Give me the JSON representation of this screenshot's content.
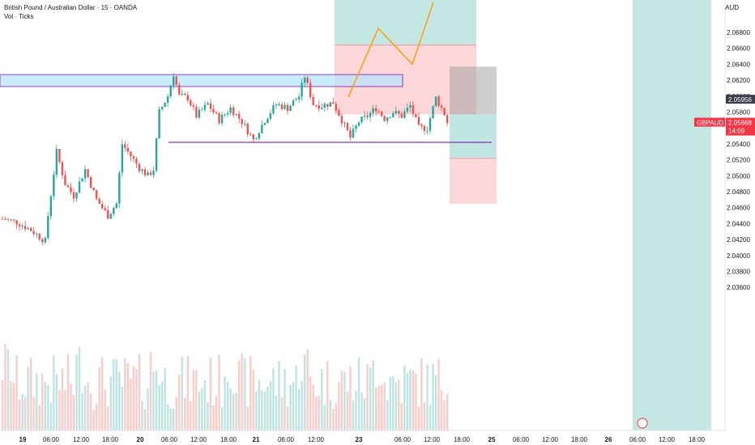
{
  "header": {
    "title": "British Pound / Australian Dollar · 15 · OANDA",
    "indicator": "Vol · Ticks",
    "currency": "AUD"
  },
  "price_tags": {
    "symbol": "GBPAUD",
    "last_price": "2.05668",
    "countdown": "14:09",
    "marker_price": "2.05956"
  },
  "colors": {
    "up": "#26a69a",
    "down": "#ef5350",
    "zone_stroke": "#7b1fa2",
    "zone_fill": "#b3e5fc",
    "path": "#f7a21b",
    "profit_fill": "#b2dfdb",
    "loss_fill": "#f9c9cc"
  },
  "chart_data": {
    "type": "candlestick",
    "symbol": "GBPAUD",
    "interval": "15",
    "ylim": [
      2.0352,
      2.0718
    ],
    "y_ticks": [
      "2.06800",
      "2.06600",
      "2.06400",
      "2.06200",
      "2.06000",
      "2.05800",
      "2.05600",
      "2.05400",
      "2.05200",
      "2.05000",
      "2.04800",
      "2.04600",
      "2.04400",
      "2.04200",
      "2.04000",
      "2.03800",
      "2.03600"
    ],
    "x_ticks": [
      "19",
      "06:00",
      "12:00",
      "18:00",
      "20",
      "06:00",
      "12:00",
      "18:00",
      "21",
      "06:00",
      "12:00",
      "23",
      "06:00",
      "12:00",
      "18:00",
      "25",
      "06:00",
      "12:00",
      "18:00",
      "26",
      "06:00",
      "12:00",
      "18:00"
    ],
    "price_path": [
      [
        0,
        2.0446
      ],
      [
        5,
        2.0442
      ],
      [
        10,
        2.0432
      ],
      [
        15,
        2.0418
      ],
      [
        16,
        2.045
      ],
      [
        19,
        2.053
      ],
      [
        22,
        2.049
      ],
      [
        25,
        2.0475
      ],
      [
        29,
        2.0508
      ],
      [
        33,
        2.047
      ],
      [
        37,
        2.045
      ],
      [
        40,
        2.0465
      ],
      [
        42,
        2.054
      ],
      [
        45,
        2.0525
      ],
      [
        48,
        2.051
      ],
      [
        51,
        2.05
      ],
      [
        53,
        2.0508
      ],
      [
        55,
        2.058
      ],
      [
        58,
        2.06
      ],
      [
        60,
        2.0628
      ],
      [
        62,
        2.06
      ],
      [
        65,
        2.0598
      ],
      [
        68,
        2.0575
      ],
      [
        72,
        2.059
      ],
      [
        76,
        2.057
      ],
      [
        80,
        2.0585
      ],
      [
        84,
        2.0568
      ],
      [
        88,
        2.0545
      ],
      [
        92,
        2.057
      ],
      [
        96,
        2.059
      ],
      [
        100,
        2.0585
      ],
      [
        104,
        2.06
      ],
      [
        106,
        2.0625
      ],
      [
        109,
        2.059
      ],
      [
        112,
        2.0588
      ],
      [
        116,
        2.0592
      ],
      [
        119,
        2.057
      ],
      [
        122,
        2.0548
      ],
      [
        125,
        2.0568
      ],
      [
        128,
        2.0575
      ],
      [
        131,
        2.0585
      ],
      [
        134,
        2.0572
      ],
      [
        137,
        2.058
      ],
      [
        140,
        2.0575
      ],
      [
        143,
        2.0588
      ],
      [
        146,
        2.056
      ],
      [
        149,
        2.056
      ],
      [
        152,
        2.0598
      ],
      [
        155,
        2.0578
      ],
      [
        156,
        2.0567
      ]
    ],
    "annotations": {
      "resistance_zone": [
        2.0612,
        2.0627
      ],
      "support_line": 2.0542,
      "position_left": {
        "entry": 2.0599,
        "target": 2.0718,
        "stop": 2.0664
      },
      "position_right": {
        "entry": 2.0577,
        "target": 2.0637,
        "stop": 2.0522,
        "stop_bottom": 2.0465
      },
      "projection": [
        2.0599,
        2.0685,
        2.064,
        2.0718
      ]
    }
  }
}
